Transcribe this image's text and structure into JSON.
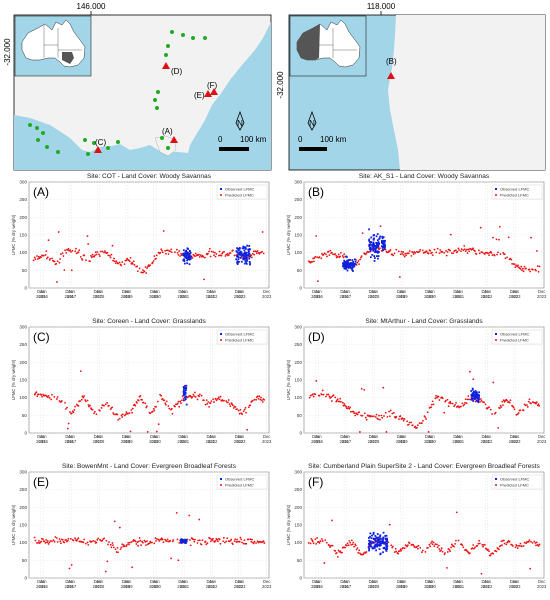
{
  "maps": {
    "left": {
      "top_coord": "146.000",
      "side_coord": "-32.000",
      "sites": [
        "(A)",
        "(C)",
        "(D)",
        "(E)",
        "(F)"
      ],
      "north_label": "N",
      "scale_label": "100 km",
      "scale_zero": "0"
    },
    "right": {
      "top_coord": "118.000",
      "side_coord": "-32.000",
      "sites": [
        "(B)"
      ],
      "north_label": "N",
      "scale_label": "100 km",
      "scale_zero": "0"
    },
    "colors": {
      "sea": "#a3d5e8",
      "land": "#f2f2f2",
      "site_marker": "#dd1111",
      "extra_site": "#22aa22",
      "inset_highlight": "#555555"
    }
  },
  "chart_data": [
    {
      "type": "scatter",
      "panel": "(A)",
      "title": "Site: COT - Land Cover: Woody Savannas",
      "ylabel": "LFMC (% dry weight)",
      "ylim": [
        0,
        300
      ],
      "yticks": [
        0,
        50,
        100,
        150,
        200,
        250,
        300
      ],
      "xlim": [
        "2015-07-01",
        "2023-12-31"
      ],
      "legend": [
        "Observed LFMC",
        "Predicted LFMC"
      ],
      "legend_position": "top-right",
      "grid": true,
      "predicted_trend": [
        [
          "2015-09-01",
          80
        ],
        [
          "2016-02-01",
          95
        ],
        [
          "2016-06-01",
          70
        ],
        [
          "2016-10-01",
          100
        ],
        [
          "2017-03-01",
          105
        ],
        [
          "2017-08-01",
          75
        ],
        [
          "2017-12-01",
          100
        ],
        [
          "2018-05-01",
          95
        ],
        [
          "2018-09-01",
          65
        ],
        [
          "2019-02-01",
          80
        ],
        [
          "2019-07-01",
          45
        ],
        [
          "2019-11-01",
          70
        ],
        [
          "2020-03-01",
          105
        ],
        [
          "2020-08-01",
          100
        ],
        [
          "2021-01-01",
          95
        ],
        [
          "2021-06-01",
          90
        ],
        [
          "2021-12-01",
          100
        ],
        [
          "2022-05-01",
          95
        ],
        [
          "2022-10-01",
          100
        ],
        [
          "2023-03-01",
          85
        ],
        [
          "2023-08-01",
          100
        ],
        [
          "2023-11-01",
          95
        ]
      ],
      "observed_groups": [
        {
          "start": "2020-12-15",
          "end": "2021-03-31",
          "mean": 90,
          "spread": 18,
          "min": 60,
          "max": 165
        },
        {
          "start": "2022-11-01",
          "end": "2023-04-30",
          "mean": 95,
          "spread": 25,
          "min": 20,
          "max": 225
        }
      ]
    },
    {
      "type": "scatter",
      "panel": "(B)",
      "title": "Site: AK_S1 - Land Cover: Woody Savannas",
      "ylabel": "LFMC (% dry weight)",
      "ylim": [
        0,
        300
      ],
      "yticks": [
        0,
        50,
        100,
        150,
        200,
        250,
        300
      ],
      "xlim": [
        "2015-07-01",
        "2023-12-31"
      ],
      "legend": [
        "Observed LFMC",
        "Predicted LFMC"
      ],
      "legend_position": "top-right",
      "grid": true,
      "predicted_trend": [
        [
          "2015-09-01",
          70
        ],
        [
          "2016-01-01",
          90
        ],
        [
          "2016-06-01",
          100
        ],
        [
          "2016-12-01",
          90
        ],
        [
          "2017-03-01",
          60
        ],
        [
          "2017-07-01",
          80
        ],
        [
          "2017-12-01",
          115
        ],
        [
          "2018-04-01",
          110
        ],
        [
          "2018-09-01",
          100
        ],
        [
          "2019-03-01",
          95
        ],
        [
          "2019-09-01",
          100
        ],
        [
          "2020-03-01",
          105
        ],
        [
          "2020-09-01",
          100
        ],
        [
          "2021-03-01",
          110
        ],
        [
          "2021-09-01",
          105
        ],
        [
          "2022-02-01",
          95
        ],
        [
          "2022-08-01",
          100
        ],
        [
          "2023-01-01",
          60
        ],
        [
          "2023-06-01",
          50
        ],
        [
          "2023-11-01",
          55
        ]
      ],
      "observed_groups": [
        {
          "start": "2016-11-15",
          "end": "2017-04-30",
          "mean": 65,
          "spread": 15,
          "min": 35,
          "max": 105
        },
        {
          "start": "2017-10-15",
          "end": "2018-03-15",
          "mean": 120,
          "spread": 35,
          "min": 55,
          "max": 200
        },
        {
          "start": "2018-04-01",
          "end": "2018-05-15",
          "mean": 120,
          "spread": 20,
          "min": 90,
          "max": 145
        }
      ]
    },
    {
      "type": "scatter",
      "panel": "(C)",
      "title": "Site: Coreen - Land Cover: Grasslands",
      "ylabel": "LFMC (% dry weight)",
      "ylim": [
        0,
        300
      ],
      "yticks": [
        0,
        50,
        100,
        150,
        200,
        250,
        300
      ],
      "xlim": [
        "2015-07-01",
        "2023-12-31"
      ],
      "legend": [
        "Observed LFMC",
        "Predicted LFMC"
      ],
      "legend_position": "top-right",
      "grid": true,
      "predicted_trend": [
        [
          "2015-09-01",
          110
        ],
        [
          "2016-03-01",
          105
        ],
        [
          "2016-09-01",
          90
        ],
        [
          "2017-01-01",
          55
        ],
        [
          "2017-06-01",
          105
        ],
        [
          "2017-11-01",
          55
        ],
        [
          "2018-04-01",
          85
        ],
        [
          "2018-09-01",
          40
        ],
        [
          "2019-02-01",
          60
        ],
        [
          "2019-06-01",
          100
        ],
        [
          "2019-11-01",
          55
        ],
        [
          "2020-03-01",
          105
        ],
        [
          "2020-08-01",
          65
        ],
        [
          "2021-01-01",
          100
        ],
        [
          "2021-06-01",
          105
        ],
        [
          "2021-11-01",
          85
        ],
        [
          "2022-04-01",
          100
        ],
        [
          "2022-09-01",
          80
        ],
        [
          "2023-02-01",
          55
        ],
        [
          "2023-07-01",
          100
        ],
        [
          "2023-11-01",
          95
        ]
      ],
      "observed_groups": [
        {
          "start": "2020-12-20",
          "end": "2021-01-31",
          "mean": 115,
          "spread": 30,
          "min": 80,
          "max": 170
        }
      ]
    },
    {
      "type": "scatter",
      "panel": "(D)",
      "title": "Site: MtArthur - Land Cover: Grasslands",
      "ylabel": "LFMC (% dry weight)",
      "ylim": [
        0,
        300
      ],
      "yticks": [
        0,
        50,
        100,
        150,
        200,
        250,
        300
      ],
      "xlim": [
        "2015-07-01",
        "2023-12-31"
      ],
      "legend": [
        "Observed LFMC",
        "Predicted LFMC"
      ],
      "legend_position": "top-right",
      "grid": true,
      "predicted_trend": [
        [
          "2015-09-01",
          105
        ],
        [
          "2016-03-01",
          110
        ],
        [
          "2016-09-01",
          95
        ],
        [
          "2017-03-01",
          60
        ],
        [
          "2017-09-01",
          50
        ],
        [
          "2018-03-01",
          45
        ],
        [
          "2018-09-01",
          55
        ],
        [
          "2019-03-01",
          30
        ],
        [
          "2019-07-01",
          20
        ],
        [
          "2019-11-01",
          45
        ],
        [
          "2020-03-01",
          105
        ],
        [
          "2020-08-01",
          90
        ],
        [
          "2021-01-01",
          75
        ],
        [
          "2021-06-01",
          100
        ],
        [
          "2021-11-01",
          85
        ],
        [
          "2022-04-01",
          55
        ],
        [
          "2022-09-01",
          95
        ],
        [
          "2023-02-01",
          55
        ],
        [
          "2023-07-01",
          90
        ],
        [
          "2023-11-01",
          80
        ]
      ],
      "observed_groups": [
        {
          "start": "2021-06-01",
          "end": "2021-09-15",
          "mean": 105,
          "spread": 15,
          "min": 85,
          "max": 130
        }
      ]
    },
    {
      "type": "scatter",
      "panel": "(E)",
      "title": "Site: BowenMnt - Land Cover: Evergreen Broadleaf Forests",
      "ylabel": "LFMC (% dry weight)",
      "ylim": [
        0,
        300
      ],
      "yticks": [
        0,
        50,
        100,
        150,
        200,
        250,
        300
      ],
      "xlim": [
        "2015-07-01",
        "2023-12-31"
      ],
      "legend": [
        "Observed LFMC",
        "Predicted LFMC"
      ],
      "legend_position": "top-right",
      "grid": true,
      "predicted_trend": [
        [
          "2015-09-01",
          105
        ],
        [
          "2016-06-01",
          105
        ],
        [
          "2017-03-01",
          105
        ],
        [
          "2017-09-01",
          100
        ],
        [
          "2018-03-01",
          105
        ],
        [
          "2018-09-01",
          80
        ],
        [
          "2019-03-01",
          105
        ],
        [
          "2019-09-01",
          100
        ],
        [
          "2020-03-01",
          105
        ],
        [
          "2020-09-01",
          105
        ],
        [
          "2021-06-01",
          105
        ],
        [
          "2022-03-01",
          105
        ],
        [
          "2022-11-01",
          105
        ],
        [
          "2023-06-01",
          105
        ],
        [
          "2023-11-01",
          105
        ]
      ],
      "observed_groups": [
        {
          "start": "2020-11-15",
          "end": "2021-01-31",
          "mean": 105,
          "spread": 5,
          "min": 95,
          "max": 115
        }
      ]
    },
    {
      "type": "scatter",
      "panel": "(F)",
      "title": "Site: Cumberland Plain SuperSite 2 - Land Cover: Evergreen Broadleaf Forests",
      "ylabel": "LFMC (% dry weight)",
      "ylim": [
        0,
        300
      ],
      "yticks": [
        0,
        50,
        100,
        150,
        200,
        250,
        300
      ],
      "xlim": [
        "2015-07-01",
        "2023-12-31"
      ],
      "legend": [
        "Observed LFMC",
        "Predicted LFMC"
      ],
      "legend_position": "top-right",
      "grid": true,
      "predicted_trend": [
        [
          "2015-09-01",
          100
        ],
        [
          "2016-03-01",
          110
        ],
        [
          "2016-09-01",
          70
        ],
        [
          "2017-03-01",
          100
        ],
        [
          "2017-08-01",
          65
        ],
        [
          "2018-01-01",
          105
        ],
        [
          "2018-06-01",
          100
        ],
        [
          "2018-11-01",
          70
        ],
        [
          "2019-04-01",
          100
        ],
        [
          "2019-09-01",
          75
        ],
        [
          "2020-02-01",
          100
        ],
        [
          "2020-07-01",
          70
        ],
        [
          "2020-12-01",
          105
        ],
        [
          "2021-05-01",
          75
        ],
        [
          "2021-10-01",
          100
        ],
        [
          "2022-03-01",
          65
        ],
        [
          "2022-08-01",
          105
        ],
        [
          "2023-01-01",
          90
        ],
        [
          "2023-06-01",
          100
        ],
        [
          "2023-11-01",
          95
        ]
      ],
      "observed_groups": [
        {
          "start": "2017-10-15",
          "end": "2018-06-15",
          "mean": 100,
          "spread": 25,
          "min": 55,
          "max": 185
        }
      ]
    }
  ]
}
